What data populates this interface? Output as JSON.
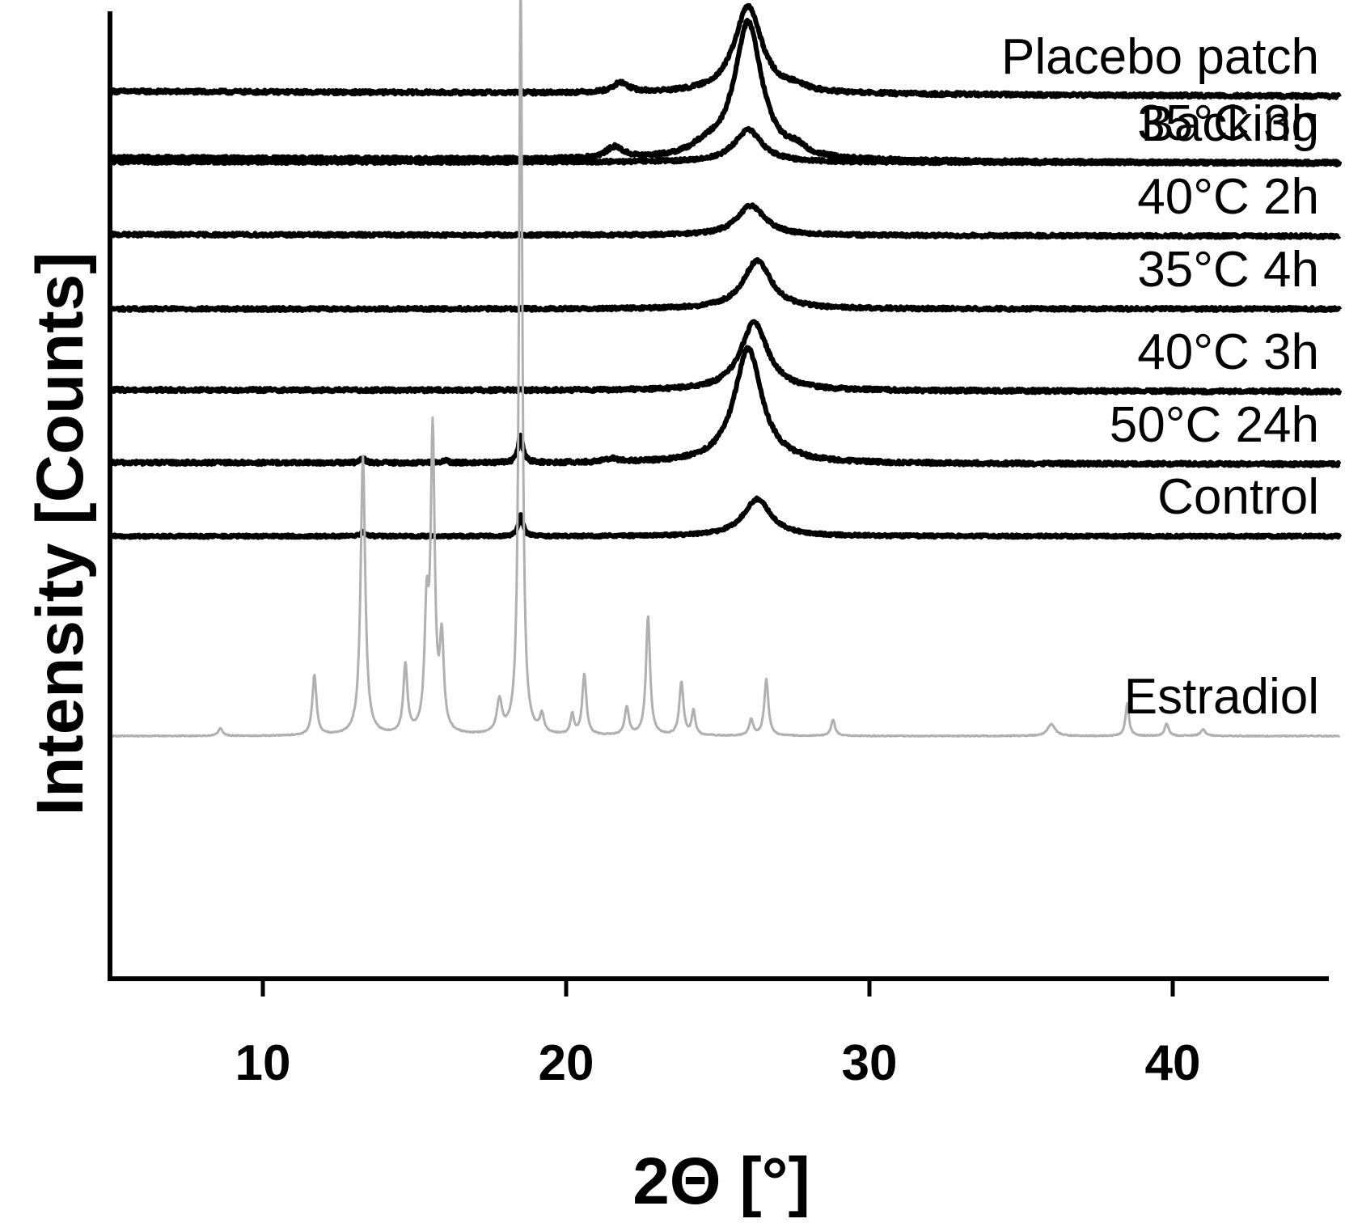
{
  "chart_data": {
    "type": "line",
    "xlabel": "2Θ [°]",
    "ylabel": "Intensity [Counts]",
    "xlim": [
      5,
      45.5
    ],
    "x_ticks": [
      10,
      20,
      30,
      40
    ],
    "y_ticks_labeled": false,
    "grid": false,
    "legend": "series labels at right end of each trace",
    "series": [
      {
        "name": "Backing",
        "color": "#000000",
        "baseline": 1015,
        "tilt": -7,
        "noise": 2.2,
        "peaks": [
          [
            26.0,
            170,
            0.55
          ],
          [
            21.6,
            14,
            0.35
          ],
          [
            24.6,
            10,
            0.6
          ],
          [
            27.6,
            8,
            0.3
          ]
        ]
      },
      {
        "name": "Placebo patch",
        "color": "#000000",
        "baseline": 1097,
        "tilt": -6,
        "noise": 2.2,
        "peaks": [
          [
            26.0,
            108,
            0.55
          ],
          [
            21.8,
            12,
            0.3
          ],
          [
            27.6,
            6,
            0.3
          ]
        ]
      },
      {
        "name": "35°C 3h",
        "color": "#000000",
        "baseline": 1010,
        "tilt": -1,
        "noise": 2.0,
        "peaks": [
          [
            26.0,
            40,
            0.55
          ]
        ]
      },
      {
        "name": "40°C 2h",
        "color": "#000000",
        "baseline": 920,
        "tilt": -2,
        "noise": 2.0,
        "peaks": [
          [
            26.1,
            37,
            0.55
          ]
        ]
      },
      {
        "name": "35°C 4h",
        "color": "#000000",
        "baseline": 828,
        "tilt": 0,
        "noise": 2.0,
        "peaks": [
          [
            26.3,
            60,
            0.55
          ]
        ]
      },
      {
        "name": "40°C 3h",
        "color": "#000000",
        "baseline": 728,
        "tilt": -2,
        "noise": 2.2,
        "peaks": [
          [
            26.2,
            84,
            0.55
          ]
        ]
      },
      {
        "name": "50°C 24h",
        "color": "#000000",
        "baseline": 638,
        "tilt": -2,
        "noise": 2.2,
        "peaks": [
          [
            26.0,
            142,
            0.55
          ],
          [
            18.5,
            35,
            0.09
          ],
          [
            13.3,
            5,
            0.1
          ],
          [
            16.0,
            3,
            0.1
          ],
          [
            21.5,
            4,
            0.3
          ]
        ]
      },
      {
        "name": "Control",
        "color": "#000000",
        "baseline": 547,
        "tilt": 0,
        "noise": 1.6,
        "peaks": [
          [
            26.3,
            46,
            0.55
          ],
          [
            18.5,
            26,
            0.09
          ],
          [
            13.3,
            5,
            0.1
          ]
        ]
      },
      {
        "name": "Estradiol",
        "color": "#b0b0b0",
        "baseline": 300,
        "tilt": 0,
        "noise": 0.6,
        "peaks": [
          [
            8.6,
            10,
            0.08
          ],
          [
            11.7,
            75,
            0.08
          ],
          [
            13.3,
            345,
            0.09
          ],
          [
            14.7,
            85,
            0.08
          ],
          [
            15.4,
            140,
            0.08
          ],
          [
            15.6,
            365,
            0.08
          ],
          [
            15.9,
            110,
            0.08
          ],
          [
            17.8,
            40,
            0.1
          ],
          [
            18.5,
            950,
            0.065
          ],
          [
            19.2,
            22,
            0.08
          ],
          [
            20.2,
            25,
            0.07
          ],
          [
            20.6,
            75,
            0.08
          ],
          [
            22.0,
            35,
            0.08
          ],
          [
            22.7,
            148,
            0.08
          ],
          [
            23.8,
            66,
            0.08
          ],
          [
            24.2,
            30,
            0.07
          ],
          [
            26.1,
            20,
            0.08
          ],
          [
            26.6,
            70,
            0.08
          ],
          [
            28.8,
            20,
            0.08
          ],
          [
            36.0,
            15,
            0.15
          ],
          [
            38.5,
            40,
            0.07
          ],
          [
            39.8,
            15,
            0.08
          ],
          [
            41.0,
            8,
            0.1
          ]
        ]
      }
    ]
  }
}
